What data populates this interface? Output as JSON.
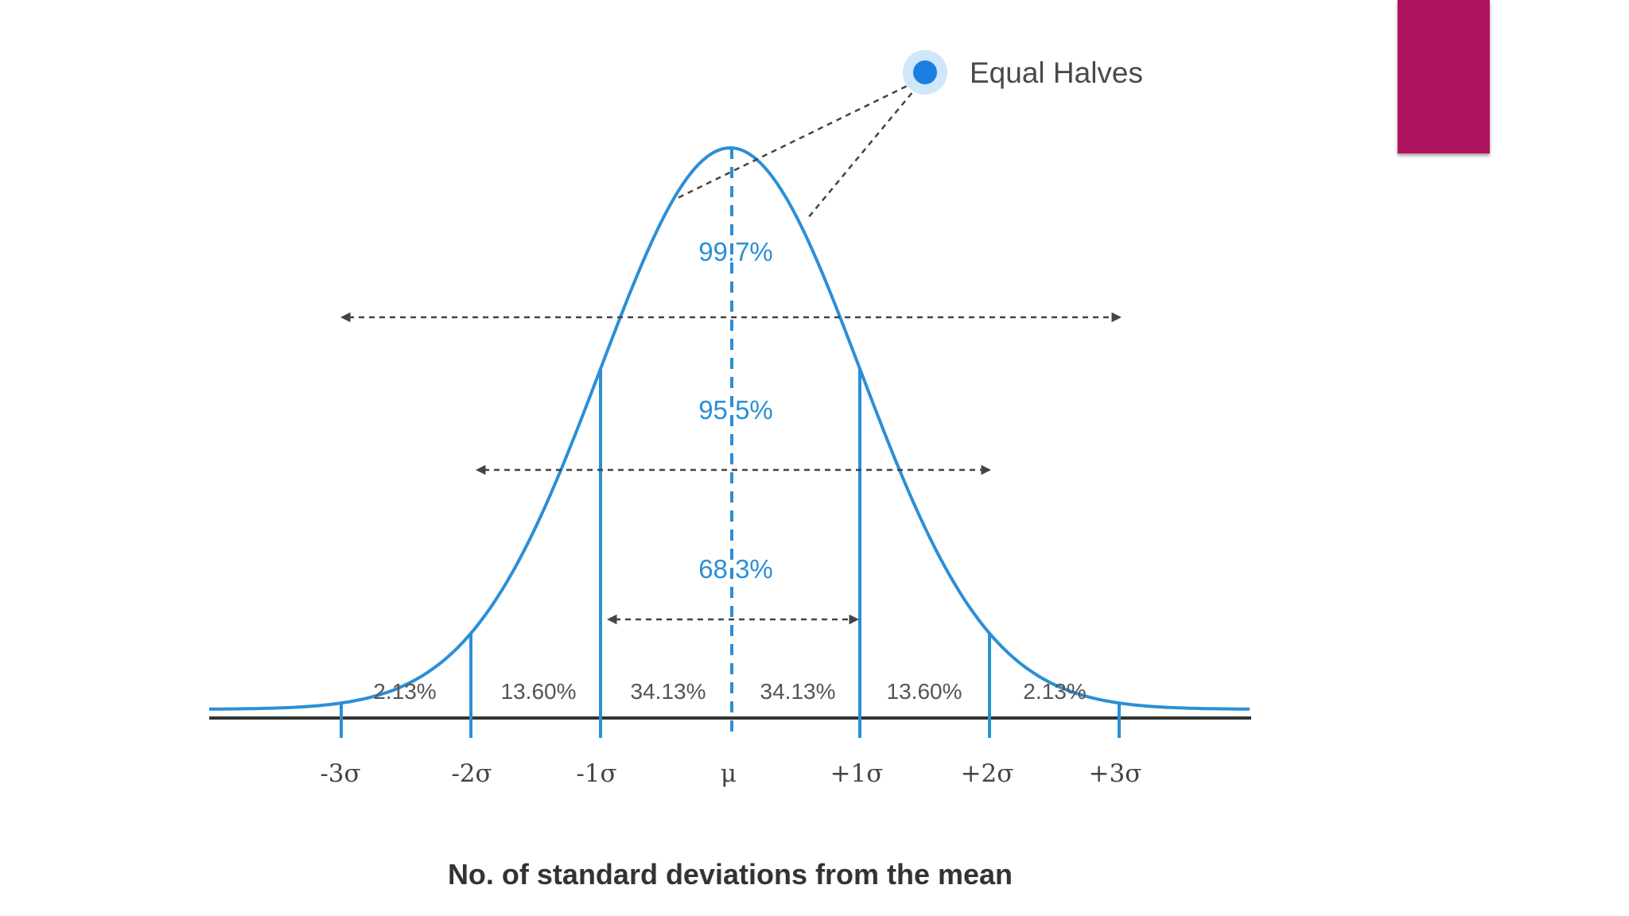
{
  "callout": {
    "label": "Equal Halves",
    "dot_color": "#1a7fe0",
    "halo_color": "#cfe6fb"
  },
  "ranges": [
    {
      "id": "range-3sigma",
      "label": "99.7%"
    },
    {
      "id": "range-2sigma",
      "label": "95.5%"
    },
    {
      "id": "range-1sigma",
      "label": "68.3%"
    }
  ],
  "segments": [
    "2.13%",
    "13.60%",
    "34.13%",
    "34.13%",
    "13.60%",
    "2.13%"
  ],
  "ticks": [
    "-3σ",
    "-2σ",
    "-1σ",
    "μ",
    "+1σ",
    "+2σ",
    "+3σ"
  ],
  "axis_title": "No. of standard deviations from the mean",
  "colors": {
    "curve": "#2b8fd6",
    "arrows": "#444444",
    "accent": "#b0135e",
    "axis": "#333333"
  }
}
